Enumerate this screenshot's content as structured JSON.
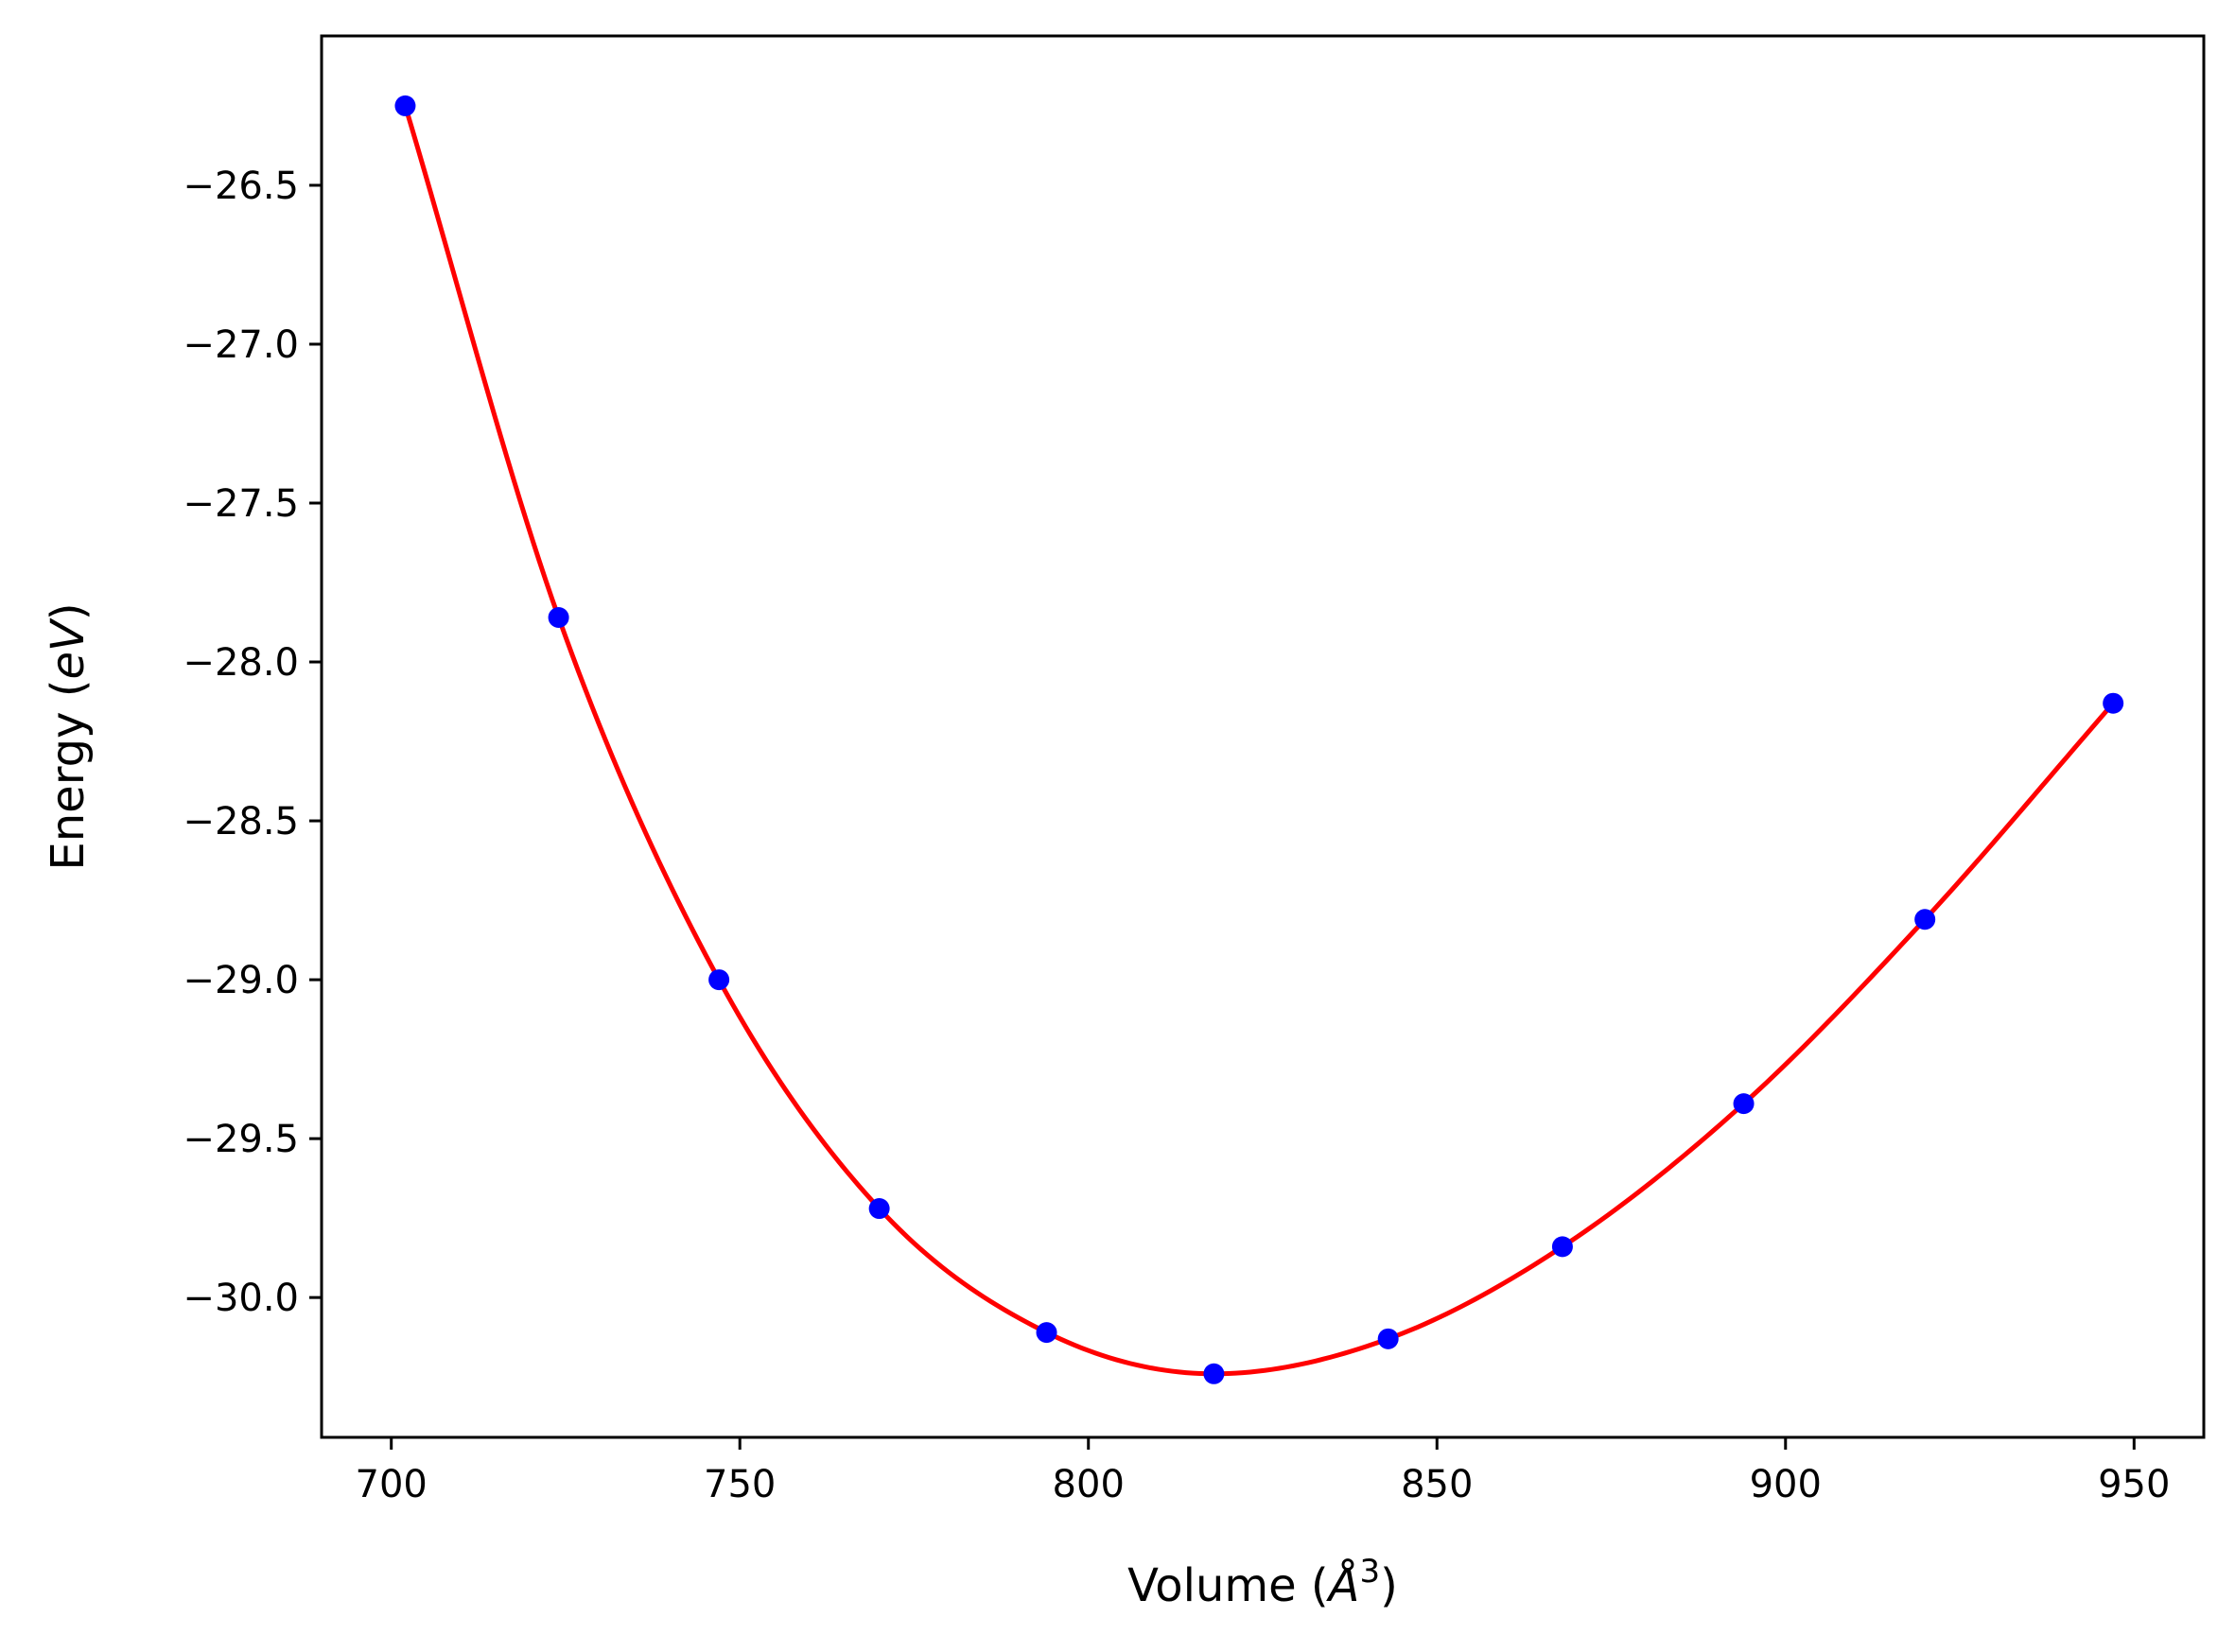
{
  "chart_data": {
    "type": "scatter",
    "xlabel": {
      "prefix": "Volume (",
      "italic": "Å",
      "sup": "3",
      "suffix": ")"
    },
    "ylabel": {
      "prefix": "Energy (",
      "italic": "eV",
      "suffix": ")"
    },
    "xlim": [
      690,
      960
    ],
    "ylim": [
      -30.44,
      -26.03
    ],
    "xticks": [
      700,
      750,
      800,
      850,
      900,
      950
    ],
    "yticks": [
      -26.5,
      -27.0,
      -27.5,
      -28.0,
      -28.5,
      -29.0,
      -29.5,
      -30.0
    ],
    "xtick_labels": [
      "700",
      "750",
      "800",
      "850",
      "900",
      "950"
    ],
    "ytick_labels": [
      "−26.5",
      "−27.0",
      "−27.5",
      "−28.0",
      "−28.5",
      "−29.0",
      "−29.5",
      "−30.0"
    ],
    "series": [
      {
        "kind": "points",
        "color": "#0000ff",
        "x": [
          702,
          724,
          747,
          770,
          794,
          818,
          843,
          868,
          894,
          920,
          947
        ],
        "y": [
          -26.25,
          -27.86,
          -29.0,
          -29.72,
          -30.11,
          -30.24,
          -30.13,
          -29.84,
          -29.39,
          -28.81,
          -28.13
        ]
      },
      {
        "kind": "fit",
        "color": "#ff0000",
        "x": [
          702,
          724,
          747,
          770,
          794,
          818,
          843,
          868,
          894,
          920,
          947
        ],
        "y": [
          -26.25,
          -27.86,
          -29.0,
          -29.72,
          -30.11,
          -30.24,
          -30.13,
          -29.84,
          -29.39,
          -28.81,
          -28.13
        ]
      }
    ],
    "grid": false,
    "legend": "none"
  }
}
